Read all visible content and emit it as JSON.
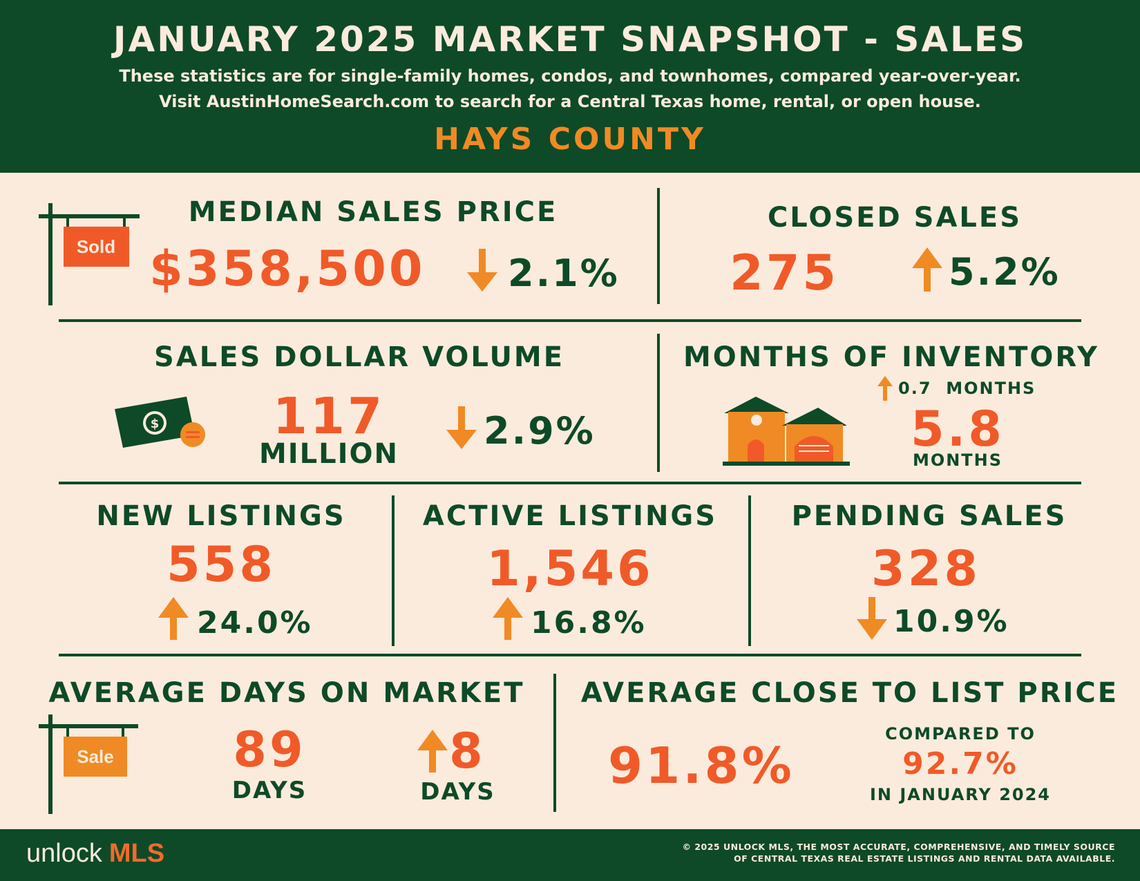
{
  "header": {
    "title": "JANUARY 2025 MARKET SNAPSHOT - SALES",
    "subtitle_line1": "These statistics are for single-family homes, condos, and townhomes, compared year-over-year.",
    "subtitle_line2": "Visit AustinHomeSearch.com to search for a Central Texas home, rental, or open house.",
    "county": "HAYS COUNTY"
  },
  "colors": {
    "green": "#0e4a27",
    "orange": "#f05a28",
    "light_orange": "#f08a24",
    "background": "#fbebdd"
  },
  "median_sales_price": {
    "label": "MEDIAN SALES PRICE",
    "value": "$358,500",
    "change": "2.1%",
    "direction": "down",
    "sign_text": "Sold",
    "icon": "sold-sign-icon"
  },
  "closed_sales": {
    "label": "CLOSED SALES",
    "value": "275",
    "change": "5.2%",
    "direction": "up"
  },
  "sales_dollar_volume": {
    "label": "SALES DOLLAR VOLUME",
    "value": "117",
    "unit": "MILLION",
    "change": "2.9%",
    "direction": "down",
    "icon": "money-icon"
  },
  "months_of_inventory": {
    "label": "MONTHS OF INVENTORY",
    "change": "0.7  MONTHS",
    "direction": "up",
    "value": "5.8",
    "unit": "MONTHS",
    "icon": "house-icon"
  },
  "new_listings": {
    "label": "NEW LISTINGS",
    "value": "558",
    "change": "24.0%",
    "direction": "up"
  },
  "active_listings": {
    "label": "ACTIVE LISTINGS",
    "value": "1,546",
    "change": "16.8%",
    "direction": "up"
  },
  "pending_sales": {
    "label": "PENDING SALES",
    "value": "328",
    "change": "10.9%",
    "direction": "down"
  },
  "average_days_on_market": {
    "label": "AVERAGE DAYS ON MARKET",
    "value": "89",
    "unit": "DAYS",
    "change": "8",
    "change_unit": "DAYS",
    "direction": "up",
    "sign_text": "Sale",
    "icon": "sale-sign-icon"
  },
  "average_close_to_list": {
    "label": "AVERAGE CLOSE TO LIST PRICE",
    "value": "91.8%",
    "compared_label": "COMPARED TO",
    "compared_value": "92.7%",
    "compared_period": "IN JANUARY 2024"
  },
  "footer": {
    "logo_unlock": "unlock",
    "logo_mls": "MLS",
    "copyright_line1": "© 2025 UNLOCK MLS, THE MOST ACCURATE, COMPREHENSIVE, AND TIMELY SOURCE",
    "copyright_line2": "OF CENTRAL TEXAS REAL ESTATE LISTINGS AND RENTAL DATA AVAILABLE."
  }
}
